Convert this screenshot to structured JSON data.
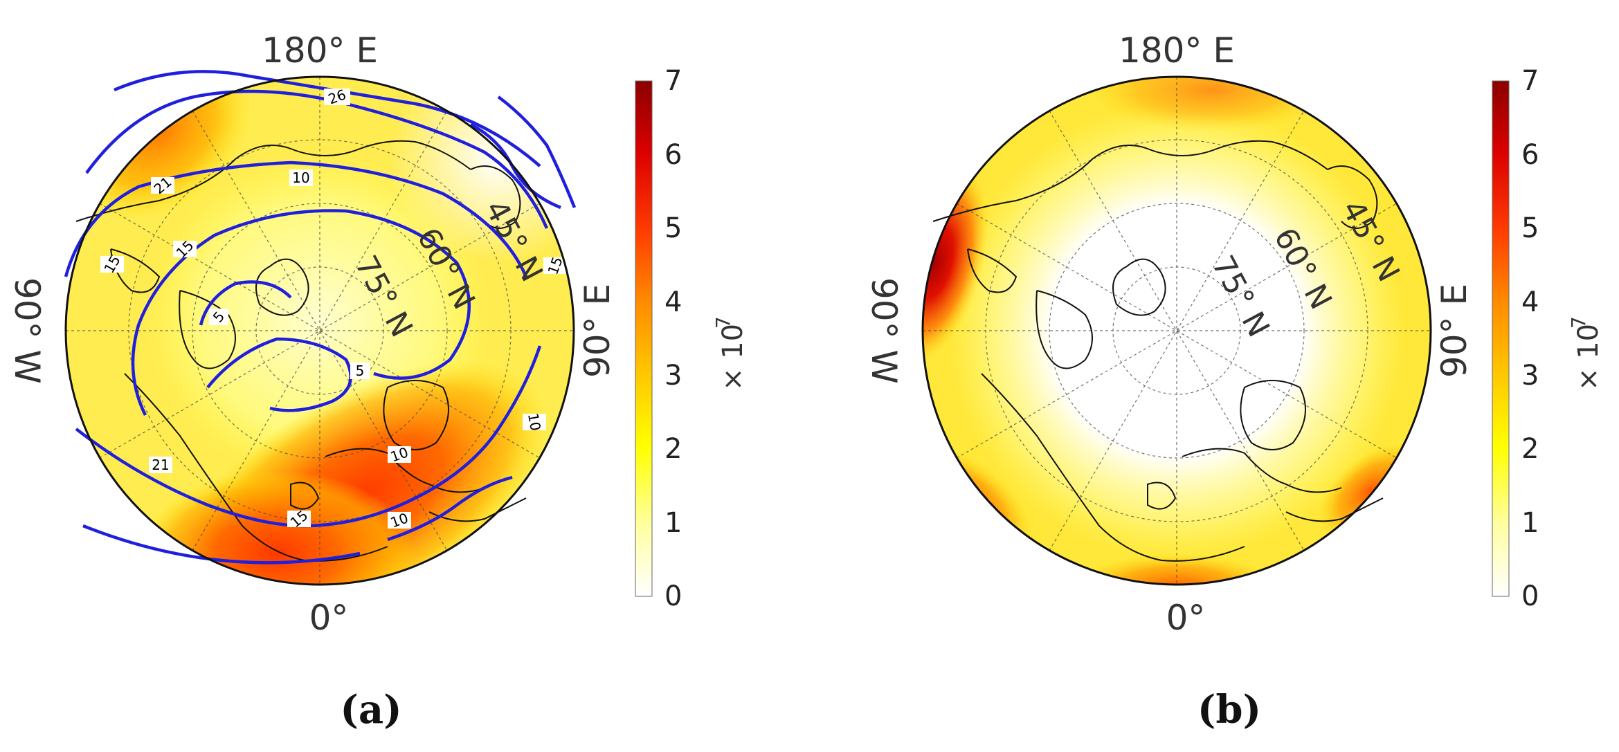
{
  "figure": {
    "panels": [
      {
        "id": "a",
        "caption": "(a)",
        "map": {
          "projection": "north-polar-stereographic",
          "lon_labels": {
            "top": "180° E",
            "bottom": "0°",
            "left": "90° W",
            "right": "90° E"
          },
          "lat_labels": [
            "45° N",
            "60° N",
            "75° N"
          ],
          "gridline_lats": [
            45,
            60,
            75
          ],
          "gridline_lon_step": 30,
          "coastlines": true,
          "field_description": "filled color field, maxima over North Atlantic/Europe and North Pacific",
          "contour_color": "#1f1fdd",
          "contour_labels": [
            "26",
            "21",
            "21",
            "15",
            "15",
            "15",
            "15",
            "10",
            "10",
            "10",
            "10",
            "5",
            "5"
          ]
        },
        "colorbar": {
          "ticks": [
            "0",
            "1",
            "2",
            "3",
            "4",
            "5",
            "6",
            "7"
          ],
          "range": [
            0,
            7
          ],
          "scale_label": "× 10",
          "scale_exponent": "7",
          "colormap": [
            "#ffffff",
            "#ffffa0",
            "#ffff00",
            "#ffc800",
            "#ff8c00",
            "#ff3c00",
            "#dc0000",
            "#8b0000"
          ]
        }
      },
      {
        "id": "b",
        "caption": "(b)",
        "map": {
          "projection": "north-polar-stereographic",
          "lon_labels": {
            "top": "180° E",
            "bottom": "0°",
            "left": "90° W",
            "right": "90° E"
          },
          "lat_labels": [
            "45° N",
            "60° N",
            "75° N"
          ],
          "gridline_lats": [
            45,
            60,
            75
          ],
          "gridline_lon_step": 30,
          "coastlines": true,
          "field_description": "filled color field, weak except maxima near the 90° W edge and the southern rim"
        },
        "colorbar": {
          "ticks": [
            "0",
            "1",
            "2",
            "3",
            "4",
            "5",
            "6",
            "7"
          ],
          "range": [
            0,
            7
          ],
          "scale_label": "× 10",
          "scale_exponent": "7",
          "colormap": [
            "#ffffff",
            "#ffffa0",
            "#ffff00",
            "#ffc800",
            "#ff8c00",
            "#ff3c00",
            "#dc0000",
            "#8b0000"
          ]
        }
      }
    ]
  }
}
